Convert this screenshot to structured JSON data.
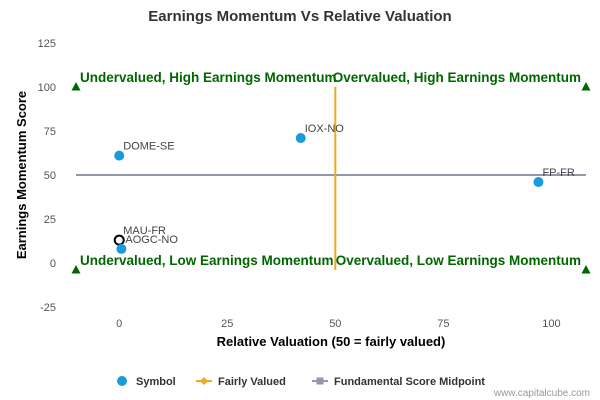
{
  "chart_data": {
    "type": "scatter",
    "title": "Earnings Momentum Vs Relative Valuation",
    "xlabel": "Relative Valuation (50 = fairly valued)",
    "ylabel": "Earnings Momentum Score",
    "xlim": [
      -10,
      108
    ],
    "ylim": [
      -25,
      125
    ],
    "xticks": [
      0,
      25,
      50,
      75,
      100
    ],
    "yticks": [
      -25,
      0,
      25,
      50,
      75,
      100,
      125
    ],
    "grid": false,
    "legend_position": "bottom",
    "points": [
      {
        "label": "DOME-SE",
        "x": 0,
        "y": 61,
        "style": "filled"
      },
      {
        "label": "IOX-NO",
        "x": 42,
        "y": 71,
        "style": "filled"
      },
      {
        "label": "FP-FR",
        "x": 97,
        "y": 46,
        "style": "filled"
      },
      {
        "label": "MAU-FR",
        "x": 0,
        "y": 13,
        "style": "hollow"
      },
      {
        "label": "AOGC-NO",
        "x": 0.5,
        "y": 8,
        "style": "filled"
      }
    ],
    "fairly_valued_x": 50,
    "midpoint_y": 50,
    "quadrant_labels": [
      {
        "text": "Undervalued, High Earnings Momentum",
        "corner": "top-left"
      },
      {
        "text": "Overvalued, High Earnings Momentum",
        "corner": "top-right"
      },
      {
        "text": "Undervalued, Low Earnings Momentum",
        "corner": "bottom-left"
      },
      {
        "text": "Overvalued, Low Earnings Momentum",
        "corner": "bottom-right"
      }
    ],
    "corner_markers": [
      {
        "x": -10,
        "y": 100
      },
      {
        "x": 108,
        "y": 100
      },
      {
        "x": -10,
        "y": -4
      },
      {
        "x": 108,
        "y": -4
      }
    ],
    "legend": [
      {
        "name": "Symbol",
        "kind": "dot"
      },
      {
        "name": "Fairly Valued",
        "kind": "line-diamond"
      },
      {
        "name": "Fundamental Score Midpoint",
        "kind": "line-square"
      }
    ],
    "colors": {
      "point": "#1a9be0",
      "fairly_valued": "#f5a623",
      "midpoint": "#8f99a8",
      "quadrant_text": "#006600",
      "marker": "#006600"
    }
  },
  "credit": "www.capitalcube.com"
}
